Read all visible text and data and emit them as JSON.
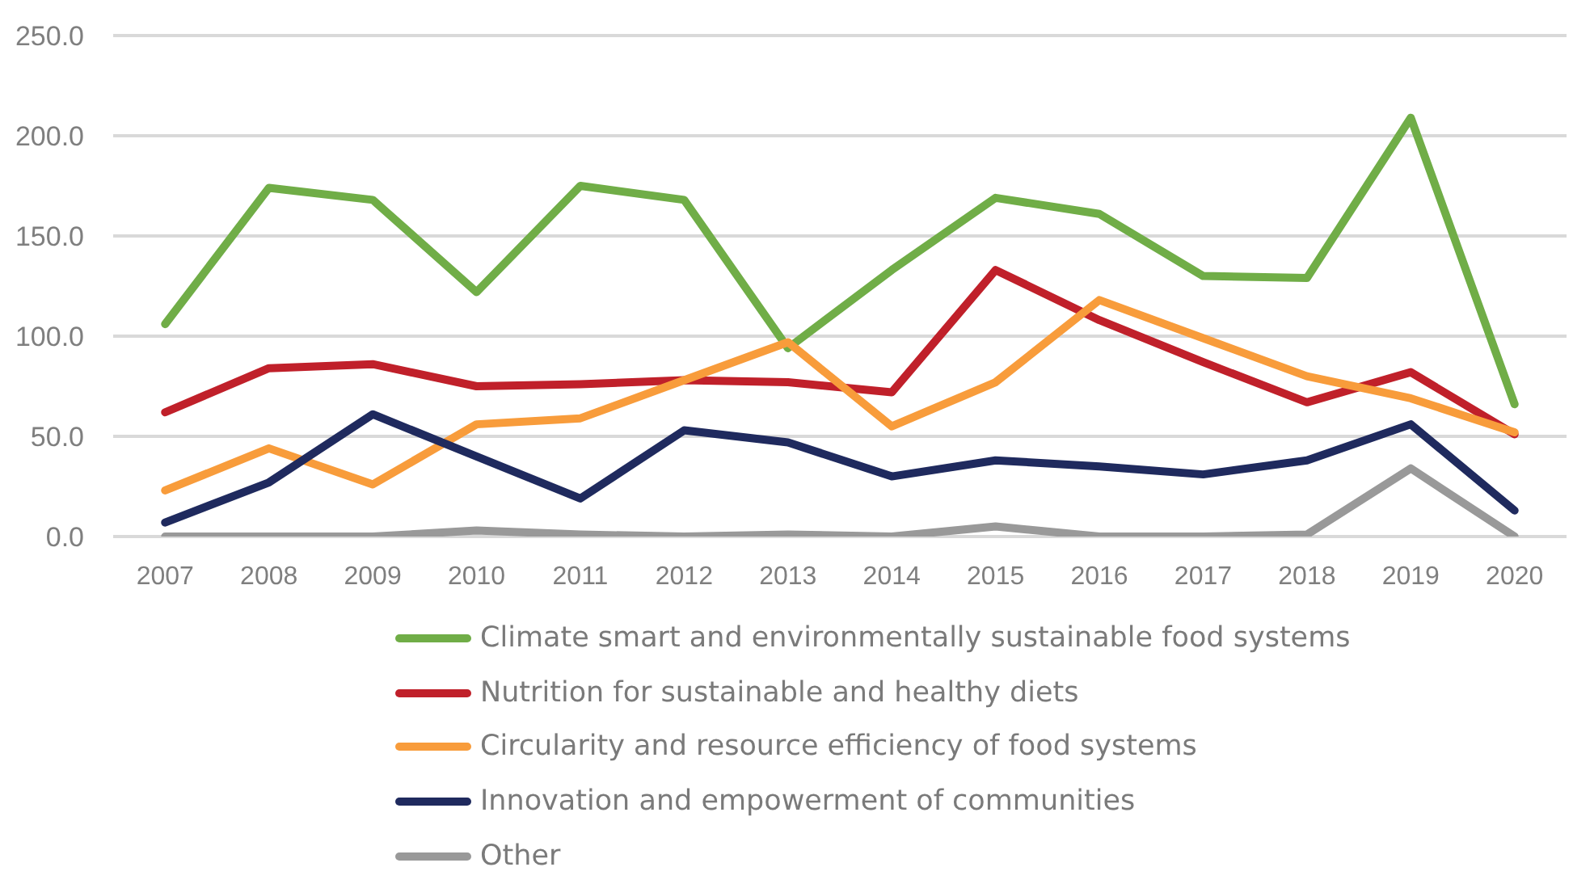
{
  "chart_data": {
    "type": "line",
    "categories": [
      "2007",
      "2008",
      "2009",
      "2010",
      "2011",
      "2012",
      "2013",
      "2014",
      "2015",
      "2016",
      "2017",
      "2018",
      "2019",
      "2020"
    ],
    "series": [
      {
        "name": "Climate smart and environmentally sustainable food systems",
        "color": "#70ad47",
        "values": [
          106,
          174,
          168,
          122,
          175,
          168,
          94,
          133,
          169,
          161,
          130,
          129,
          209,
          66
        ]
      },
      {
        "name": "Nutrition for sustainable and healthy diets",
        "color": "#c0202a",
        "values": [
          62,
          84,
          86,
          75,
          76,
          78,
          77,
          72,
          133,
          108,
          87,
          67,
          82,
          51
        ]
      },
      {
        "name": "Circularity and resource efficiency of food systems",
        "color": "#f89c3b",
        "values": [
          23,
          44,
          26,
          56,
          59,
          78,
          97,
          55,
          77,
          118,
          99,
          80,
          69,
          52
        ]
      },
      {
        "name": "Innovation and empowerment of communities",
        "color": "#1f2a5e",
        "values": [
          7,
          27,
          61,
          40,
          19,
          53,
          47,
          30,
          38,
          35,
          31,
          38,
          56,
          13
        ]
      },
      {
        "name": "Other",
        "color": "#999999",
        "values": [
          0,
          0,
          0,
          3,
          1,
          0,
          1,
          0,
          5,
          0,
          0,
          1,
          34,
          0
        ]
      }
    ],
    "ylim": [
      0,
      250
    ],
    "yticks": [
      {
        "value": 0,
        "label": "0.0"
      },
      {
        "value": 50,
        "label": "50.0"
      },
      {
        "value": 100,
        "label": "100.0"
      },
      {
        "value": 150,
        "label": "150.0"
      },
      {
        "value": 200,
        "label": "200.0"
      },
      {
        "value": 250,
        "label": "250.0"
      }
    ],
    "grid": "y",
    "legend": "bottom",
    "line_style": "solid"
  }
}
